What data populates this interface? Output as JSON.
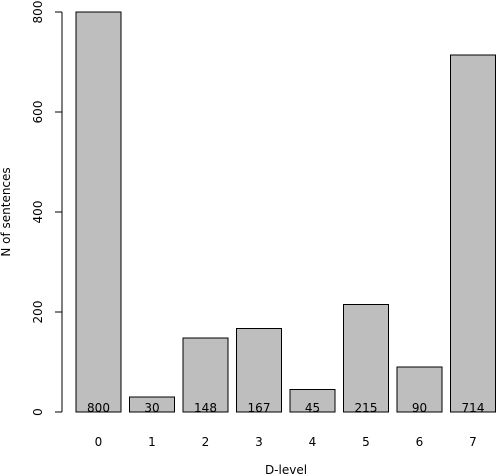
{
  "chart_data": {
    "type": "bar",
    "title": "",
    "xlabel": "D-level",
    "ylabel": "N of sentences",
    "categories": [
      "0",
      "1",
      "2",
      "3",
      "4",
      "5",
      "6",
      "7"
    ],
    "values": [
      800,
      30,
      148,
      167,
      45,
      215,
      90,
      714
    ],
    "data_labels": [
      "800",
      "30",
      "148",
      "167",
      "45",
      "215",
      "90",
      "714"
    ],
    "ylim": [
      0,
      800
    ],
    "yticks": [
      0,
      200,
      400,
      600,
      800
    ],
    "ytick_labels": [
      "0",
      "200",
      "400",
      "600",
      "800"
    ],
    "grid": false,
    "legend": "none",
    "colors": {
      "bar_fill": "#bebebe",
      "bar_stroke": "#000000"
    }
  }
}
